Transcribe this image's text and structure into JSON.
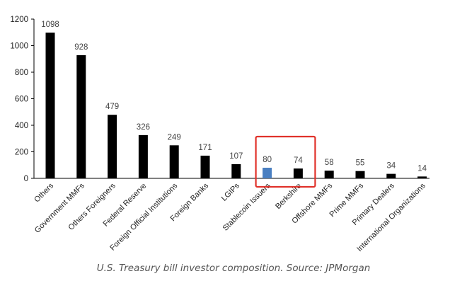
{
  "chart_data": {
    "type": "bar",
    "title": "",
    "xlabel": "",
    "ylabel": "",
    "ylim": [
      0,
      1200
    ],
    "yticks": [
      0,
      200,
      400,
      600,
      800,
      1000,
      1200
    ],
    "grid": false,
    "categories": [
      "Others",
      "Government MMFs",
      "Others Foreigners",
      "Federal Reserve",
      "Foreign Official Institutions",
      "Foreign Banks",
      "LGIPs",
      "Stablecoin Issuers",
      "Berkshire",
      "Offshore MMFs",
      "Prime MMFs",
      "Primary Dealers",
      "International Organizations"
    ],
    "values": [
      1098,
      928,
      479,
      326,
      249,
      171,
      107,
      80,
      74,
      58,
      55,
      34,
      14
    ],
    "highlighted_categories": [
      "Stablecoin Issuers",
      "Berkshire"
    ],
    "bar_color": "#000000",
    "highlight_bar_color": "#4a7fc1",
    "highlight_box_color": "#e0322b",
    "highlight_bar_category": "Stablecoin Issuers"
  },
  "caption": "U.S. Treasury bill investor composition. Source: JPMorgan"
}
